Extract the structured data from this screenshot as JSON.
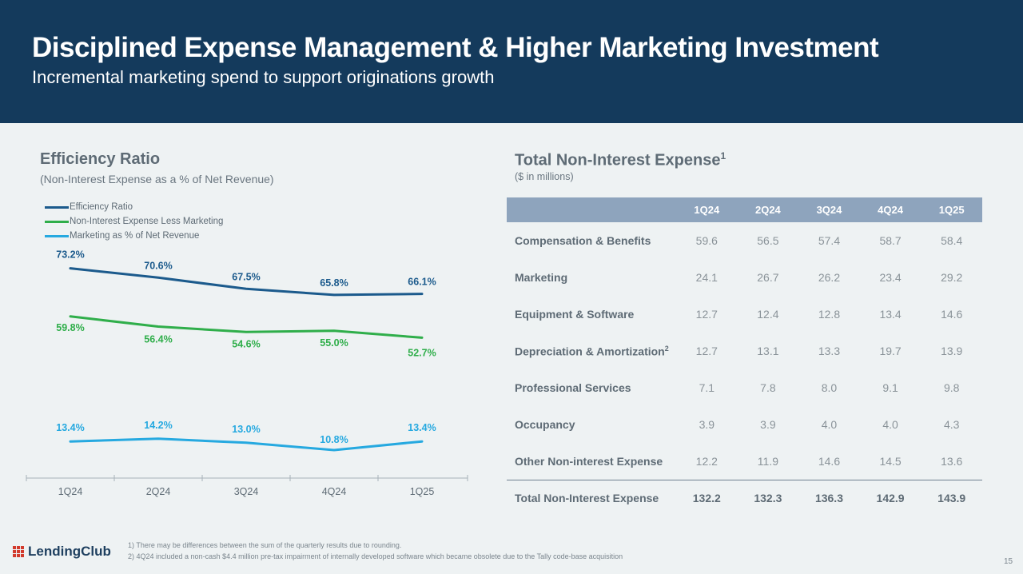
{
  "header": {
    "title": "Disciplined Expense Management & Higher Marketing Investment",
    "subtitle": "Incremental marketing spend to support originations growth"
  },
  "chart_data": {
    "type": "line",
    "title": "Efficiency Ratio",
    "subtitle": "(Non-Interest Expense as a % of Net Revenue)",
    "categories": [
      "1Q24",
      "2Q24",
      "3Q24",
      "4Q24",
      "1Q25"
    ],
    "series": [
      {
        "name": "Efficiency Ratio",
        "color": "#1b5a8c",
        "values": [
          73.2,
          70.6,
          67.5,
          65.8,
          66.1
        ],
        "labels": [
          "73.2%",
          "70.6%",
          "67.5%",
          "65.8%",
          "66.1%"
        ]
      },
      {
        "name": "Non-Interest Expense Less Marketing",
        "color": "#2fae4a",
        "values": [
          59.8,
          56.4,
          54.6,
          55.0,
          52.7
        ],
        "labels": [
          "59.8%",
          "56.4%",
          "54.6%",
          "55.0%",
          "52.7%"
        ]
      },
      {
        "name": "Marketing as % of Net Revenue",
        "color": "#26a9e0",
        "values": [
          13.4,
          14.2,
          13.0,
          10.8,
          13.4
        ],
        "labels": [
          "13.4%",
          "14.2%",
          "13.0%",
          "10.8%",
          "13.4%"
        ]
      }
    ]
  },
  "table": {
    "title": "Total Non-Interest Expense",
    "title_sup": "1",
    "subtitle": "($ in millions)",
    "columns": [
      "1Q24",
      "2Q24",
      "3Q24",
      "4Q24",
      "1Q25"
    ],
    "rows": [
      {
        "label": "Compensation & Benefits",
        "sup": "",
        "values": [
          "59.6",
          "56.5",
          "57.4",
          "58.7",
          "58.4"
        ]
      },
      {
        "label": "Marketing",
        "sup": "",
        "values": [
          "24.1",
          "26.7",
          "26.2",
          "23.4",
          "29.2"
        ]
      },
      {
        "label": "Equipment & Software",
        "sup": "",
        "values": [
          "12.7",
          "12.4",
          "12.8",
          "13.4",
          "14.6"
        ]
      },
      {
        "label": "Depreciation & Amortization",
        "sup": "2",
        "values": [
          "12.7",
          "13.1",
          "13.3",
          "19.7",
          "13.9"
        ]
      },
      {
        "label": "Professional Services",
        "sup": "",
        "values": [
          "7.1",
          "7.8",
          "8.0",
          "9.1",
          "9.8"
        ]
      },
      {
        "label": "Occupancy",
        "sup": "",
        "values": [
          "3.9",
          "3.9",
          "4.0",
          "4.0",
          "4.3"
        ]
      },
      {
        "label": "Other Non-interest Expense",
        "sup": "",
        "values": [
          "12.2",
          "11.9",
          "14.6",
          "14.5",
          "13.6"
        ]
      }
    ],
    "total": {
      "label": "Total Non-Interest Expense",
      "values": [
        "132.2",
        "132.3",
        "136.3",
        "142.9",
        "143.9"
      ]
    }
  },
  "footer": {
    "logo": "LendingClub",
    "footnotes": [
      "1)  There may be differences between the sum of the quarterly results due to rounding.",
      "2)  4Q24 included a non-cash $4.4 million pre-tax impairment of internally developed software which became obsolete due to the Tally code-base acquisition"
    ],
    "page_number": "15"
  }
}
